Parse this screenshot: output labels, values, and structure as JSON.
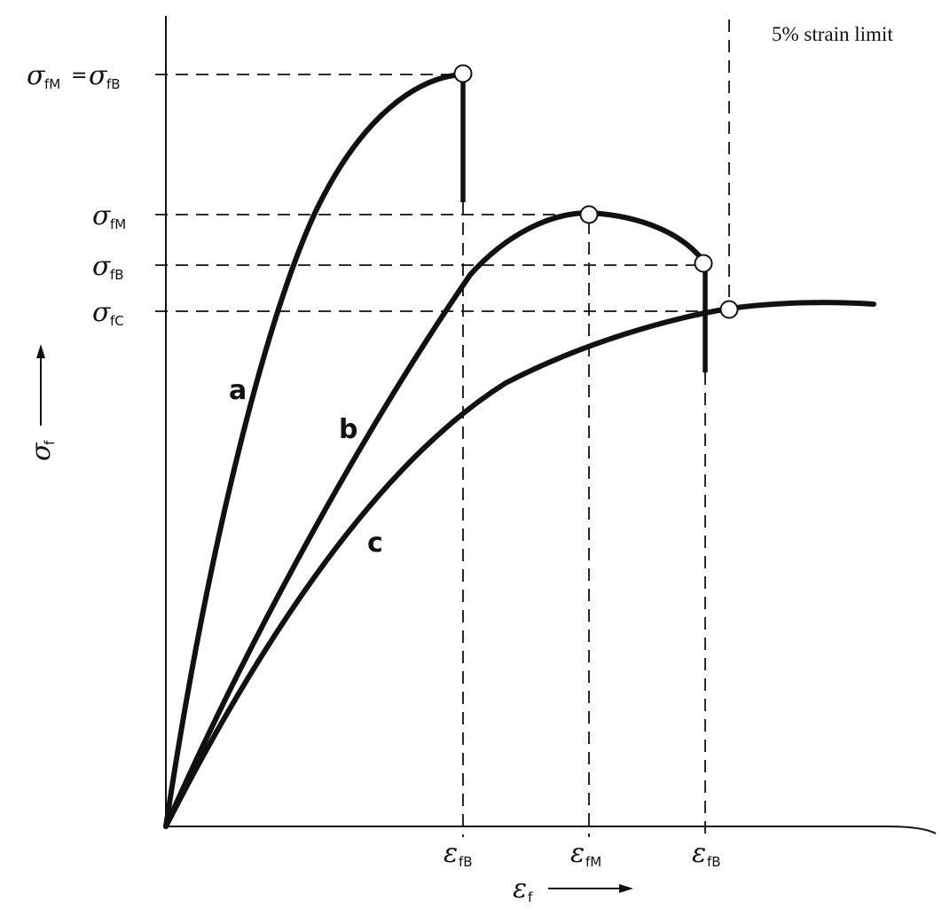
{
  "note": "5% strain limit",
  "y_axis": {
    "symbol": "σ",
    "subscript": "f"
  },
  "x_axis": {
    "symbol": "ε",
    "subscript": "f"
  },
  "y_labels": [
    {
      "id": "sfM_eq_sfB",
      "left_symbol": "σ",
      "left_sub": "fM",
      "equals": "=",
      "right_symbol": "σ",
      "right_sub": "fB"
    },
    {
      "id": "sfM",
      "symbol": "σ",
      "sub": "fM"
    },
    {
      "id": "sfB",
      "symbol": "σ",
      "sub": "fB"
    },
    {
      "id": "sfC",
      "symbol": "σ",
      "sub": "fC"
    }
  ],
  "x_labels": [
    {
      "id": "efB_1",
      "symbol": "ε",
      "sub": "fB"
    },
    {
      "id": "efM",
      "symbol": "ε",
      "sub": "fM"
    },
    {
      "id": "efB_2",
      "symbol": "ε",
      "sub": "fB"
    }
  ],
  "curves": [
    {
      "id": "a",
      "label": "a"
    },
    {
      "id": "b",
      "label": "b"
    },
    {
      "id": "c",
      "label": "c"
    }
  ]
}
